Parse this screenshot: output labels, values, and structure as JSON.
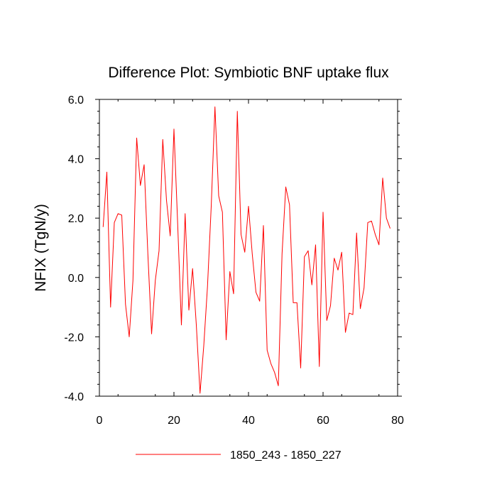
{
  "chart_data": {
    "type": "line",
    "title": "Difference Plot: Symbiotic BNF uptake flux",
    "xlabel": "",
    "ylabel": "NFIX  (TgN/y)",
    "xlim": [
      0,
      80
    ],
    "ylim": [
      -4.0,
      6.0
    ],
    "x_ticks": [
      0,
      20,
      40,
      60,
      80
    ],
    "x_tick_labels": [
      "0",
      "20",
      "40",
      "60",
      "80"
    ],
    "y_ticks": [
      -4.0,
      -2.0,
      0.0,
      2.0,
      4.0,
      6.0
    ],
    "y_tick_labels": [
      "-4.0",
      "-2.0",
      "0.0",
      "2.0",
      "4.0",
      "6.0"
    ],
    "grid": false,
    "legend_position": "bottom-center",
    "series": [
      {
        "name": "1850_243 - 1850_227",
        "color": "#ff0000",
        "x": [
          1,
          2,
          3,
          4,
          5,
          6,
          7,
          8,
          9,
          10,
          11,
          12,
          13,
          14,
          15,
          16,
          17,
          18,
          19,
          20,
          21,
          22,
          23,
          24,
          25,
          26,
          27,
          28,
          29,
          30,
          31,
          32,
          33,
          34,
          35,
          36,
          37,
          38,
          39,
          40,
          41,
          42,
          43,
          44,
          45,
          46,
          47,
          48,
          49,
          50,
          51,
          52,
          53,
          54,
          55,
          56,
          57,
          58,
          59,
          60,
          61,
          62,
          63,
          64,
          65,
          66,
          67,
          68,
          69,
          70,
          71,
          72,
          73,
          74,
          75,
          76,
          77,
          78
        ],
        "values": [
          1.7,
          3.55,
          -1.0,
          1.85,
          2.15,
          2.1,
          -0.9,
          -2.0,
          -0.1,
          4.7,
          3.1,
          3.8,
          0.8,
          -1.9,
          -0.1,
          0.9,
          4.65,
          2.6,
          1.4,
          5.0,
          1.8,
          -1.6,
          2.15,
          -1.1,
          0.3,
          -1.6,
          -3.9,
          -2.3,
          -0.3,
          2.4,
          5.75,
          2.75,
          2.2,
          -2.1,
          0.2,
          -0.55,
          5.6,
          1.45,
          0.85,
          2.4,
          0.8,
          -0.5,
          -0.8,
          1.75,
          -2.45,
          -2.9,
          -3.2,
          -3.65,
          0.8,
          3.05,
          2.45,
          -0.85,
          -0.85,
          -3.05,
          0.7,
          0.9,
          -0.25,
          1.1,
          -3.0,
          2.2,
          -1.45,
          -0.95,
          0.65,
          0.25,
          0.85,
          -1.85,
          -1.2,
          -1.25,
          1.5,
          -1.05,
          -0.35,
          1.85,
          1.9,
          1.45,
          1.1,
          3.35,
          2.0,
          1.65
        ]
      }
    ]
  }
}
